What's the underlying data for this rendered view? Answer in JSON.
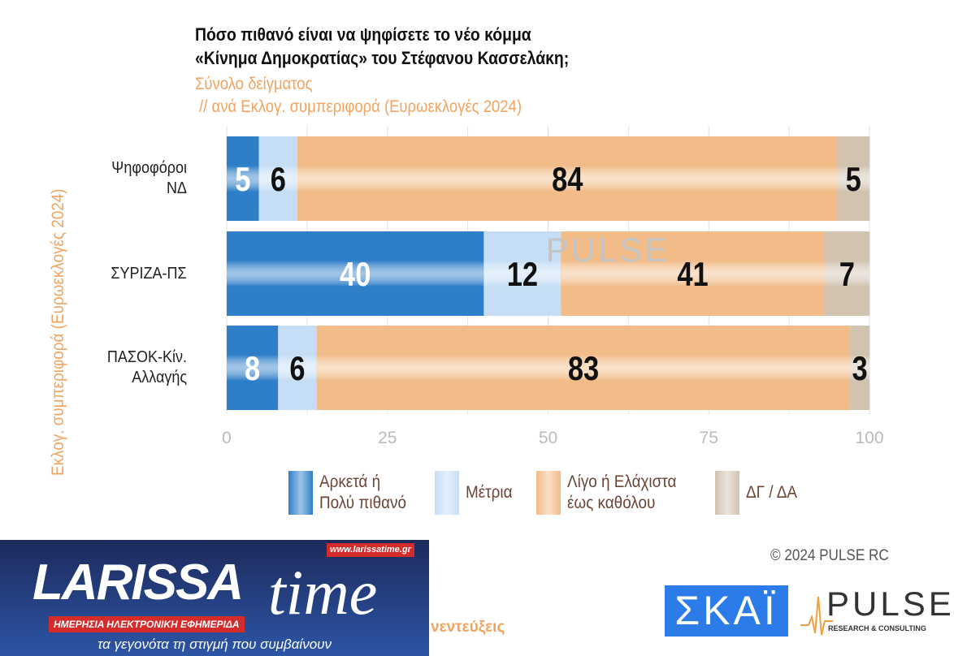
{
  "chart_data": {
    "type": "bar",
    "orientation": "horizontal",
    "stacked": true,
    "title_lines": [
      "Πόσο πιθανό είναι να ψηφίσετε το νέο κόμμα",
      "«Κίνημα Δημοκρατίας» του Στέφανου Κασσελάκη;"
    ],
    "subtitle": "Σύνολο δείγματος\n // ανά Εκλογ. συμπεριφορά (Ευρωεκλογές 2024)",
    "ylabel": "Εκλογ. συμπεριφορά (Ευρωεκλογές 2024)",
    "xlabel": "",
    "categories": [
      [
        "Ψηφοφόροι",
        "ΝΔ"
      ],
      [
        "ΣΥΡΙΖΑ-ΠΣ"
      ],
      [
        "ΠΑΣΟΚ-Κίν.",
        "Αλλαγής"
      ]
    ],
    "xlim": [
      0,
      100
    ],
    "xticks": [
      "0",
      "25",
      "50",
      "75",
      "100"
    ],
    "grid": true,
    "legend_position": "bottom",
    "series": [
      {
        "name": [
          "Αρκετά ή",
          "Πολύ πιθανό"
        ],
        "values": [
          5,
          40,
          8
        ],
        "color": "#2f7fc8",
        "label_color": "#ffffff"
      },
      {
        "name": [
          "Μέτρια"
        ],
        "values": [
          6,
          12,
          6
        ],
        "color": "#c6def5",
        "label_color": "#111111"
      },
      {
        "name": [
          "Λίγο ή Ελάχιστα",
          "έως καθόλου"
        ],
        "values": [
          84,
          41,
          83
        ],
        "color": "#f2bc88",
        "label_color": "#111111"
      },
      {
        "name": [
          "ΔΓ / ΔΑ"
        ],
        "values": [
          5,
          7,
          3
        ],
        "color": "#d2c3b1",
        "label_color": "#111111"
      }
    ]
  },
  "watermark": "PULSE",
  "copyright": "©  2024  PULSE RC",
  "branding": {
    "larissa_main": "LARISSA",
    "larissa_time": "time",
    "larissa_url": "www.larissatime.gr",
    "larissa_red": "ΗΜΕΡΗΣΙΑ ΗΛΕΚΤΡΟΝΙΚΗ ΕΦΗΜΕΡΙΔΑ",
    "larissa_tagline": "τα γεγονότα τη στιγμή που συμβαίνουν",
    "fragment": "νεντεύξεις",
    "skai": "ΣΚΑΪ",
    "pulse": "PULSE",
    "pulse_sub": "RESEARCH & CONSULTING"
  }
}
